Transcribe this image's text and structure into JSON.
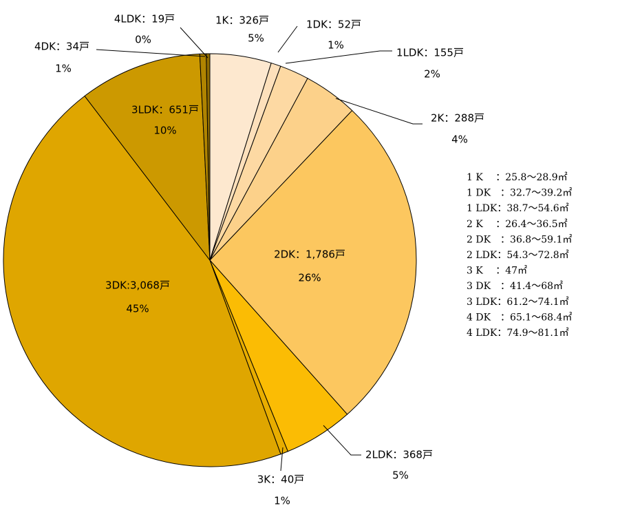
{
  "chart_data": {
    "type": "pie",
    "values": [
      326,
      52,
      155,
      288,
      1786,
      368,
      40,
      3068,
      651,
      34,
      19
    ],
    "value_labels": [
      "1K：326戸",
      "1DK：52戸",
      "1LDK：155戸",
      "2K：288戸",
      "2DK：1,786戸",
      "2LDK：368戸",
      "3K：40戸",
      "3DK:3,068戸",
      "3LDK：651戸",
      "4DK：34戸",
      "4LDK：19戸"
    ],
    "percent_labels": [
      "5%",
      "1%",
      "2%",
      "4%",
      "26%",
      "5%",
      "1%",
      "45%",
      "10%",
      "1%",
      "0%"
    ],
    "colors": [
      "#fde8cf",
      "#fde0bb",
      "#fdd9a3",
      "#fcd18a",
      "#fcc75f",
      "#fbbc04",
      "#e8ad00",
      "#dfa600",
      "#cc9900",
      "#b08400",
      "#8f6c00"
    ],
    "notes": [
      "1 K　 ：25.8～28.9㎡",
      "1 DK　：32.7～39.2㎡",
      "1 LDK：38.7～54.6㎡",
      "2 K　 ：26.4～36.5㎡",
      "2 DK　：36.8～59.1㎡",
      "2 LDK：54.3～72.8㎡",
      "3 K　 ：47㎡",
      "3 DK　：41.4～68㎡",
      "3 LDK：61.2～74.1㎡",
      "4 DK　：65.1～68.4㎡",
      "4 LDK：74.9～81.1㎡"
    ]
  }
}
